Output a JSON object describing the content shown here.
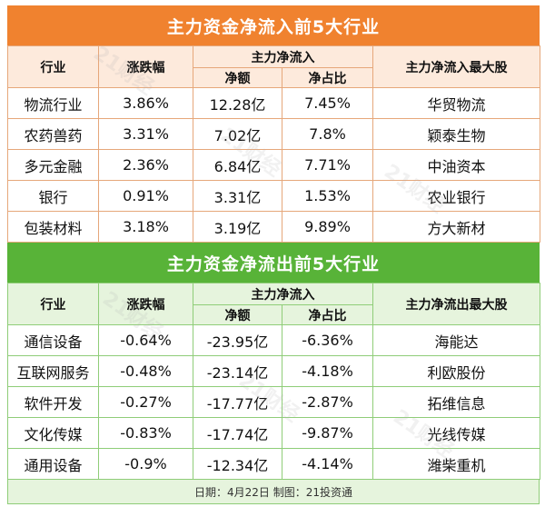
{
  "inflow": {
    "title": "主力资金净流入前5大行业",
    "headers": {
      "industry": "行业",
      "change": "涨跌幅",
      "net_flow": "主力净流入",
      "amount": "净额",
      "ratio": "净占比",
      "top_stock": "主力净流入最大股"
    },
    "rows": [
      {
        "industry": "物流行业",
        "change": "3.86%",
        "amount": "12.28亿",
        "ratio": "7.45%",
        "stock": "华贸物流"
      },
      {
        "industry": "农药兽药",
        "change": "3.31%",
        "amount": "7.02亿",
        "ratio": "7.8%",
        "stock": "颖泰生物"
      },
      {
        "industry": "多元金融",
        "change": "2.36%",
        "amount": "6.84亿",
        "ratio": "7.71%",
        "stock": "中油资本"
      },
      {
        "industry": "银行",
        "change": "0.91%",
        "amount": "3.31亿",
        "ratio": "1.53%",
        "stock": "农业银行"
      },
      {
        "industry": "包装材料",
        "change": "3.18%",
        "amount": "3.19亿",
        "ratio": "9.89%",
        "stock": "方大新材"
      }
    ]
  },
  "outflow": {
    "title": "主力资金净流出前5大行业",
    "headers": {
      "industry": "行业",
      "change": "涨跌幅",
      "net_flow": "主力净流入",
      "amount": "净额",
      "ratio": "净占比",
      "top_stock": "主力净流出最大股"
    },
    "rows": [
      {
        "industry": "通信设备",
        "change": "-0.64%",
        "amount": "-23.95亿",
        "ratio": "-6.36%",
        "stock": "海能达"
      },
      {
        "industry": "互联网服务",
        "change": "-0.48%",
        "amount": "-23.14亿",
        "ratio": "-4.18%",
        "stock": "利欧股份"
      },
      {
        "industry": "软件开发",
        "change": "-0.27%",
        "amount": "-17.77亿",
        "ratio": "-2.87%",
        "stock": "拓维信息"
      },
      {
        "industry": "文化传媒",
        "change": "-0.83%",
        "amount": "-17.74亿",
        "ratio": "-9.87%",
        "stock": "光线传媒"
      },
      {
        "industry": "通用设备",
        "change": "-0.9%",
        "amount": "-12.34亿",
        "ratio": "-4.14%",
        "stock": "潍柴重机"
      }
    ]
  },
  "footer": "日期：4月22日 制图：21投资通",
  "watermark": "21财经",
  "colors": {
    "orange": "#f0822f",
    "green": "#58b338"
  }
}
